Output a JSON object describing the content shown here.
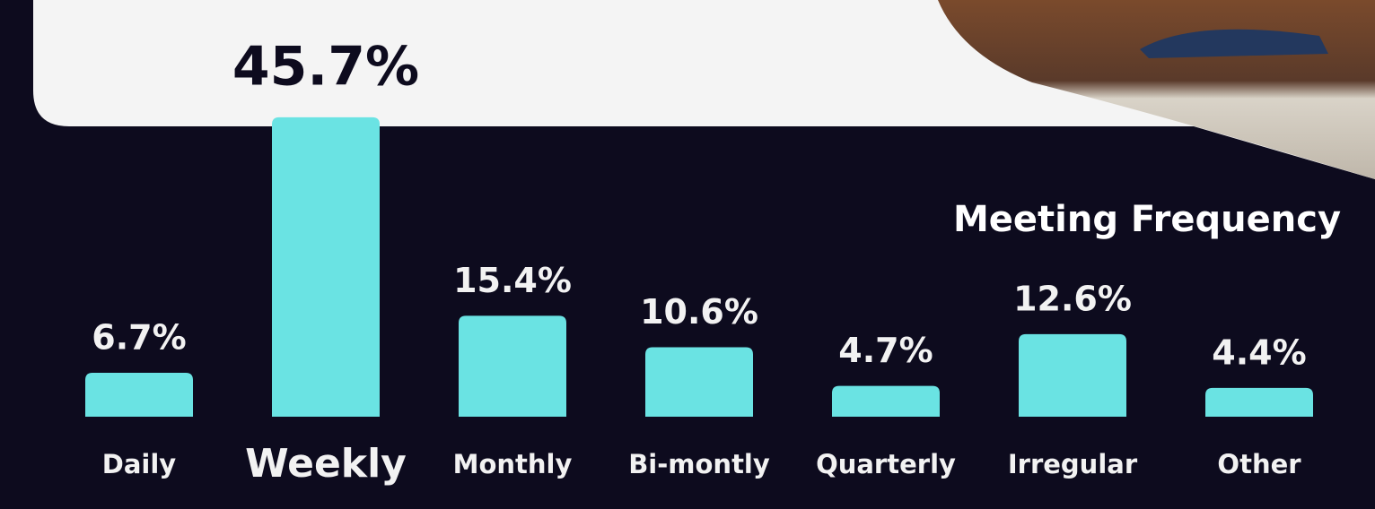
{
  "chart_data": {
    "type": "bar",
    "title": "Meeting Frequency",
    "categories": [
      "Daily",
      "Weekly",
      "Monthly",
      "Bi-montly",
      "Quarterly",
      "Irregular",
      "Other"
    ],
    "values": [
      6.7,
      45.7,
      15.4,
      10.6,
      4.7,
      12.6,
      4.4
    ],
    "value_labels": [
      "6.7%",
      "45.7%",
      "15.4%",
      "10.6%",
      "4.7%",
      "12.6%",
      "4.4%"
    ],
    "color": "#6ae3e3"
  }
}
